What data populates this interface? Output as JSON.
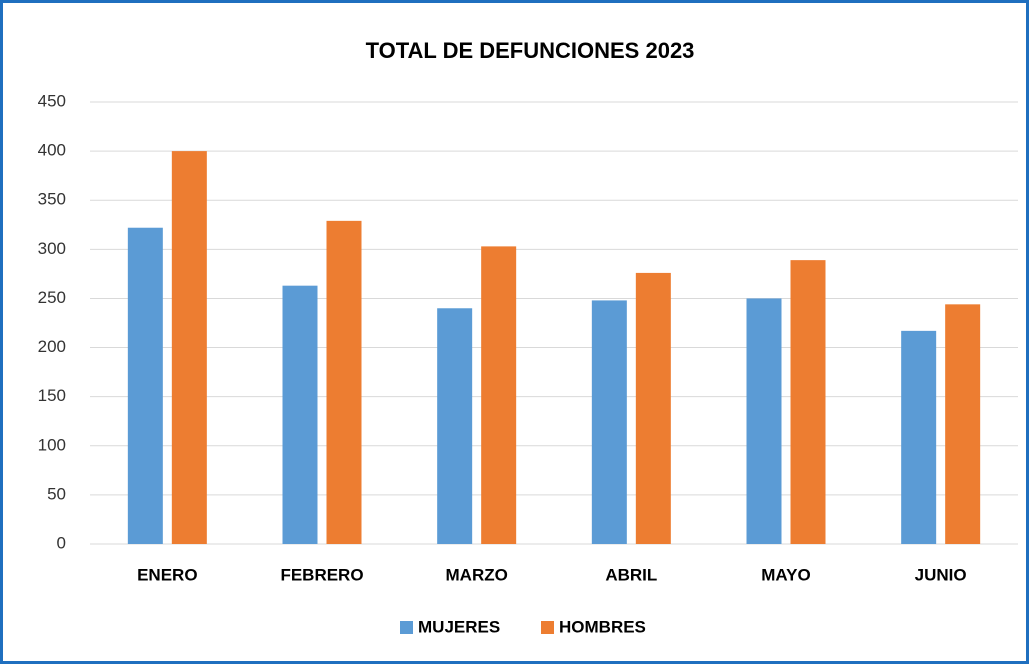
{
  "chart_data": {
    "type": "bar",
    "title": "TOTAL DE DEFUNCIONES 2023",
    "categories": [
      "ENERO",
      "FEBRERO",
      "MARZO",
      "ABRIL",
      "MAYO",
      "JUNIO"
    ],
    "series": [
      {
        "name": "MUJERES",
        "color": "#5b9bd5",
        "values": [
          322,
          263,
          240,
          248,
          250,
          217
        ]
      },
      {
        "name": "HOMBRES",
        "color": "#ed7d31",
        "values": [
          400,
          329,
          303,
          276,
          289,
          244
        ]
      }
    ],
    "ylim": [
      0,
      450
    ],
    "yticks": [
      0,
      50,
      100,
      150,
      200,
      250,
      300,
      350,
      400,
      450
    ],
    "grid": true,
    "legend": "bottom"
  }
}
